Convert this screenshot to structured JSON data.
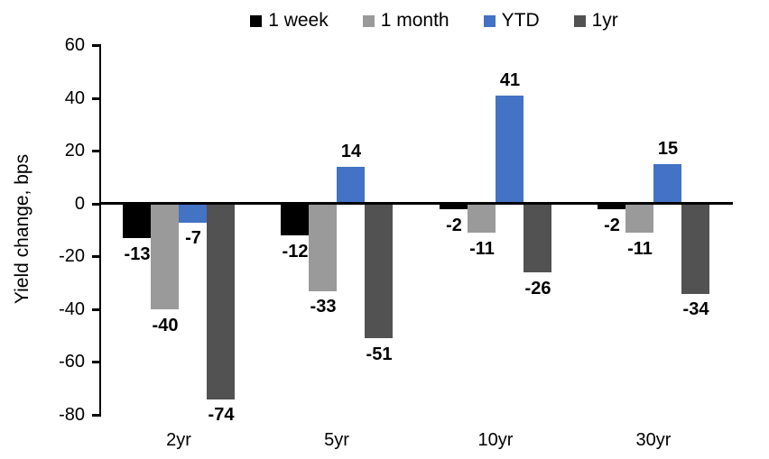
{
  "chart_data": {
    "type": "bar",
    "title": "",
    "ylabel": "Yield change, bps",
    "xlabel": "",
    "categories": [
      "2yr",
      "5yr",
      "10yr",
      "30yr"
    ],
    "series": [
      {
        "name": "1 week",
        "color": "#000000",
        "values": [
          -13,
          -12,
          -2,
          -2
        ]
      },
      {
        "name": "1 month",
        "color": "#9a9a9a",
        "values": [
          -40,
          -33,
          -11,
          -11
        ]
      },
      {
        "name": "YTD",
        "color": "#4472c4",
        "values": [
          -7,
          14,
          41,
          15
        ]
      },
      {
        "name": "1yr",
        "color": "#525252",
        "values": [
          -74,
          -51,
          -26,
          -34
        ]
      }
    ],
    "ylim": [
      -80,
      60
    ],
    "yticks": [
      60,
      40,
      20,
      0,
      -20,
      -40,
      -60,
      -80
    ],
    "grid": false,
    "legend_position": "top",
    "data_labels": true,
    "axis_color": "#000000"
  }
}
